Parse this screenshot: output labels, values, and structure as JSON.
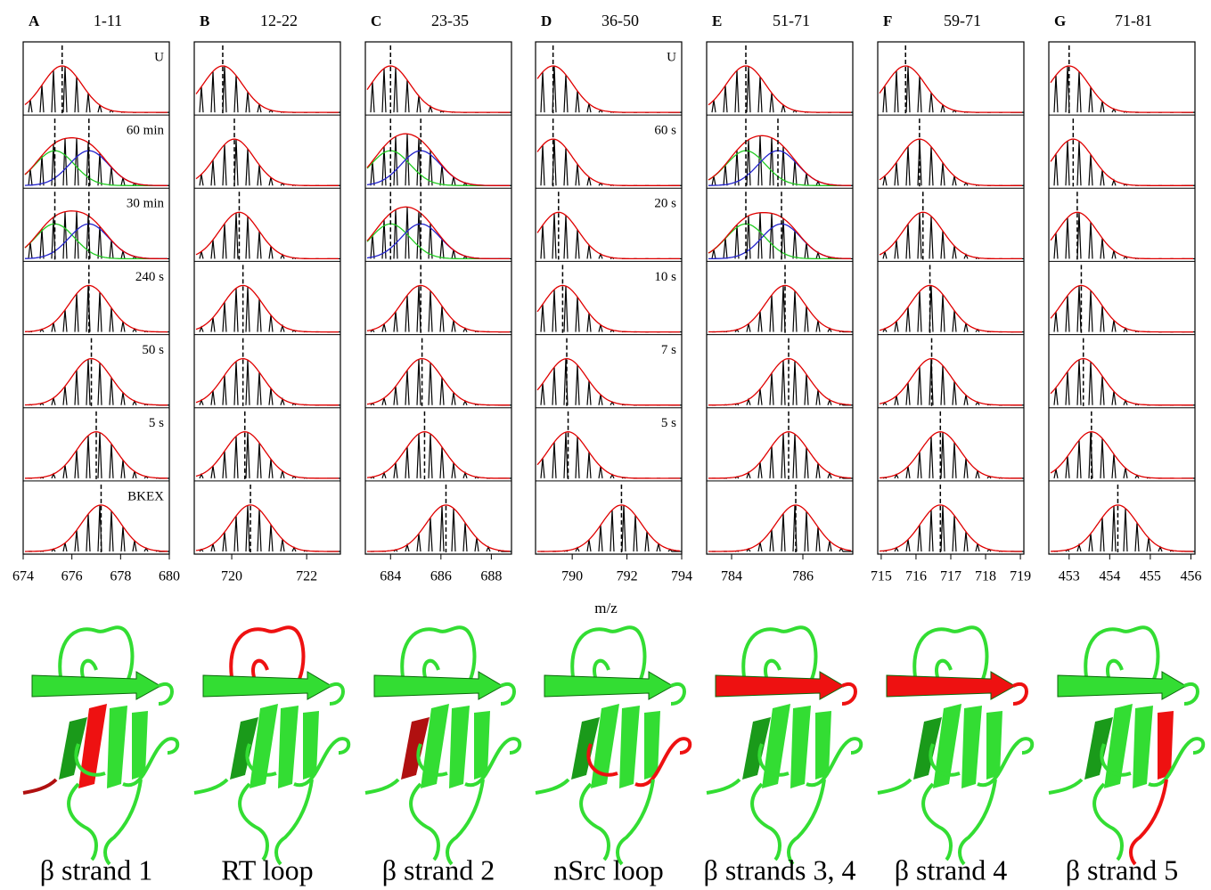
{
  "xlabel": "m/z",
  "panels": [
    {
      "letter": "A",
      "range": "1-11",
      "xlim": [
        674,
        680
      ],
      "xticks": [
        674,
        676,
        678,
        680
      ],
      "row_labels": [
        "U",
        "60 min",
        "30 min",
        "240 s",
        "50 s",
        "5 s",
        "BKEX"
      ],
      "centroids": [
        [
          675.6
        ],
        [
          675.3,
          676.7
        ],
        [
          675.3,
          676.7
        ],
        [
          676.7
        ],
        [
          676.8
        ],
        [
          677.0
        ],
        [
          677.2
        ]
      ]
    },
    {
      "letter": "B",
      "range": "12-22",
      "xlim": [
        719,
        722.9
      ],
      "xticks": [
        720,
        722
      ],
      "centroids": [
        [
          719.76
        ],
        [
          720.07
        ],
        [
          720.2
        ],
        [
          720.3
        ],
        [
          720.3
        ],
        [
          720.35
        ],
        [
          720.5
        ]
      ]
    },
    {
      "letter": "C",
      "range": "23-35",
      "xlim": [
        683,
        688.8
      ],
      "xticks": [
        684,
        686,
        688
      ],
      "centroids": [
        [
          684.0
        ],
        [
          684.0,
          685.2
        ],
        [
          684.0,
          685.2
        ],
        [
          685.2
        ],
        [
          685.25
        ],
        [
          685.35
        ],
        [
          686.2
        ]
      ]
    },
    {
      "letter": "D",
      "range": "36-50",
      "xlim": [
        788.66,
        794
      ],
      "xticks": [
        790,
        792,
        794
      ],
      "row_labels": [
        "U",
        "60 s",
        "20 s",
        "10 s",
        "7 s",
        "5 s",
        null
      ],
      "centroids": [
        [
          789.3
        ],
        [
          789.3
        ],
        [
          789.5
        ],
        [
          789.65
        ],
        [
          789.8
        ],
        [
          789.85
        ],
        [
          791.8
        ]
      ]
    },
    {
      "letter": "E",
      "range": "51-71",
      "xlim": [
        783.3,
        787.4
      ],
      "xticks": [
        784,
        786
      ],
      "centroids": [
        [
          784.4
        ],
        [
          784.4,
          785.3
        ],
        [
          784.4,
          785.4
        ],
        [
          785.5
        ],
        [
          785.6
        ],
        [
          785.6
        ],
        [
          785.8
        ]
      ]
    },
    {
      "letter": "F",
      "range": "59-71",
      "xlim": [
        714.9,
        719.1
      ],
      "xticks": [
        715,
        716,
        717,
        718,
        719
      ],
      "centroids": [
        [
          715.7
        ],
        [
          716.1
        ],
        [
          716.2
        ],
        [
          716.4
        ],
        [
          716.45
        ],
        [
          716.7
        ],
        [
          716.7
        ]
      ]
    },
    {
      "letter": "G",
      "range": "71-81",
      "xlim": [
        452.5,
        456.1
      ],
      "xticks": [
        453,
        454,
        455,
        456
      ],
      "centroids": [
        [
          453.0
        ],
        [
          453.1
        ],
        [
          453.2
        ],
        [
          453.3
        ],
        [
          453.35
        ],
        [
          453.55
        ],
        [
          454.2
        ]
      ]
    }
  ],
  "structure_labels": [
    "β strand 1",
    "RT loop",
    "β strand 2",
    "nSrc loop",
    "β strands 3, 4",
    "β strand 4",
    "β strand 5"
  ]
}
